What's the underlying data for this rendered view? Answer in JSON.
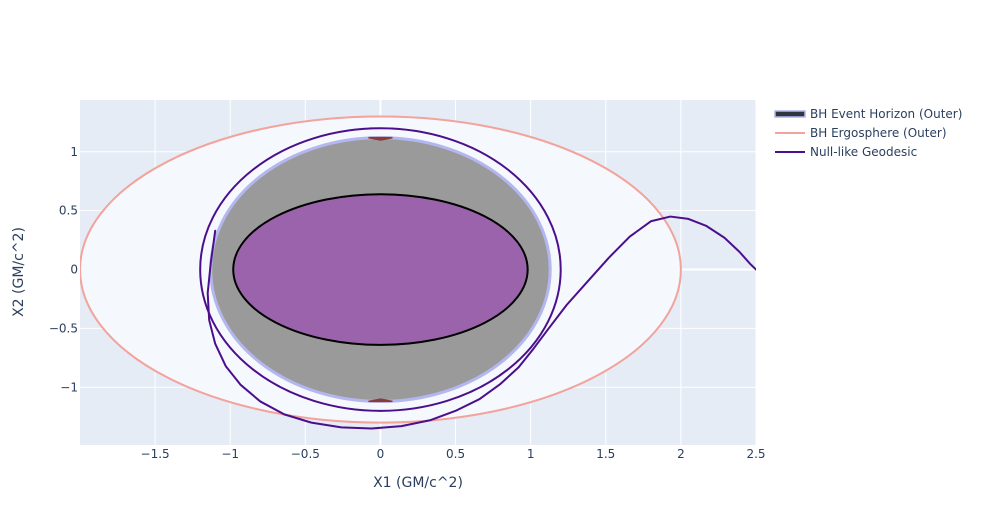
{
  "chart_data": {
    "type": "scatter",
    "title": "",
    "xlabel": "X1 (GM/c^2)",
    "ylabel": "X2 (GM/c^2)",
    "xlim": [
      -2.0,
      2.5
    ],
    "ylim": [
      -1.49,
      1.44
    ],
    "grid": true,
    "legend_position": "right",
    "x_ticks": [
      -1.5,
      -1,
      -0.5,
      0,
      0.5,
      1,
      1.5,
      2,
      2.5
    ],
    "x_tick_labels": [
      "−1.5",
      "−1",
      "−0.5",
      "0",
      "0.5",
      "1",
      "1.5",
      "2",
      "2.5"
    ],
    "y_ticks": [
      -1,
      -0.5,
      0,
      0.5,
      1
    ],
    "y_tick_labels": [
      "−1",
      "−0.5",
      "0",
      "0.5",
      "1"
    ],
    "colors": {
      "plot_background": "#e5ecf6",
      "grid": "#ffffff",
      "ergosphere_fill": "#f5f8fc",
      "ergosphere_line": "#f2a39c",
      "horizon_fill": "#9a9a9a",
      "horizon_edge": "#b4b6f0",
      "inner_fill": "#9b63ab",
      "inner_line": "#000000",
      "pole_mark": "#8b3a3a",
      "geodesic": "#4b0f8c",
      "text": "#2a3f5f"
    },
    "series": [
      {
        "name": "BH Event Horizon (Outer)",
        "kind": "ellipse",
        "center": [
          0,
          0
        ],
        "radii": [
          1.13,
          1.12
        ],
        "legend_symbol": "filled-band"
      },
      {
        "name": "BH Ergosphere (Outer)",
        "kind": "ellipse",
        "center": [
          0,
          0
        ],
        "radii": [
          2.0,
          1.3
        ],
        "legend_symbol": "line"
      },
      {
        "name": "Null-like Geodesic",
        "kind": "line",
        "legend_symbol": "line",
        "x": [
          -1.1,
          -1.13,
          -1.15,
          -1.14,
          -1.1,
          -1.03,
          -0.93,
          -0.8,
          -0.64,
          -0.46,
          -0.26,
          -0.06,
          0.14,
          0.33,
          0.5,
          0.66,
          0.8,
          0.92,
          1.02,
          1.12,
          1.24,
          1.38,
          1.52,
          1.66,
          1.8,
          1.93,
          2.05,
          2.17,
          2.29,
          2.39,
          2.46,
          2.5
        ],
        "y": [
          0.33,
          0.05,
          -0.2,
          -0.43,
          -0.63,
          -0.82,
          -0.98,
          -1.12,
          -1.23,
          -1.3,
          -1.34,
          -1.35,
          -1.33,
          -1.28,
          -1.2,
          -1.1,
          -0.97,
          -0.83,
          -0.67,
          -0.5,
          -0.3,
          -0.1,
          0.1,
          0.28,
          0.41,
          0.45,
          0.43,
          0.37,
          0.27,
          0.15,
          0.05,
          0.0
        ]
      },
      {
        "name": "",
        "kind": "ellipse",
        "center": [
          0,
          0
        ],
        "radii": [
          1.2,
          1.2
        ],
        "color_key": "geodesic"
      },
      {
        "name": "",
        "kind": "ellipse",
        "center": [
          0,
          0
        ],
        "radii": [
          0.98,
          0.64
        ],
        "color_key": "inner_line"
      }
    ],
    "pole_marks": [
      {
        "x": [
          -0.08,
          0.0,
          0.08
        ],
        "y": [
          1.12,
          1.1,
          1.12
        ]
      },
      {
        "x": [
          -0.08,
          0.0,
          0.08
        ],
        "y": [
          -1.12,
          -1.1,
          -1.12
        ]
      }
    ]
  }
}
